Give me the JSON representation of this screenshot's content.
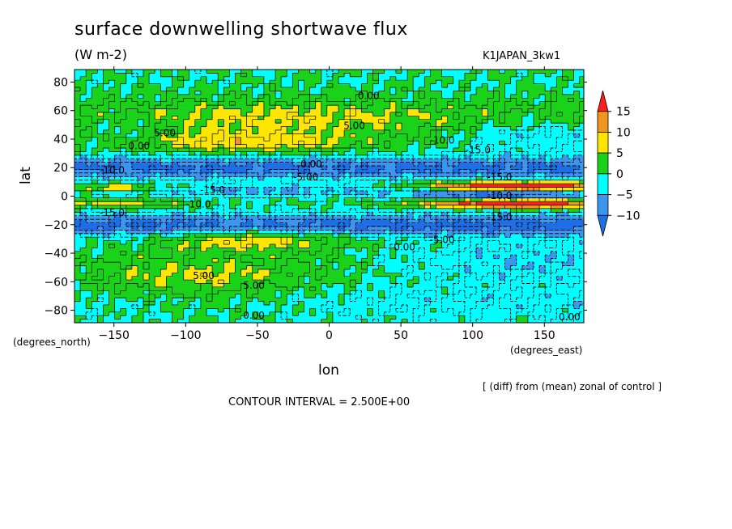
{
  "title": "surface downwelling shortwave flux",
  "units": "(W m-2)",
  "experiment": "K1JAPAN_3kw1",
  "note": "[ (diff) from (mean) zonal of control ]",
  "contour_interval": "CONTOUR INTERVAL = 2.500E+00",
  "colors": {
    "lt_-10": "#1e6fe6",
    "-10_-5": "#3c96f0",
    "-5_0": "#00ffff",
    "0_5": "#19d219",
    "5_10": "#ffe600",
    "10_15": "#f0961e",
    "gt_15": "#ff1e1e"
  },
  "chart_data": {
    "type": "heatmap",
    "xlabel": "lon",
    "ylabel": "lat",
    "x_units_label": "(degrees_east)",
    "y_units_label": "(degrees_north)",
    "xlim": [
      -177.5,
      177.5
    ],
    "ylim": [
      -88.75,
      88.75
    ],
    "x_ticks": [
      -150,
      -100,
      -50,
      0,
      50,
      100,
      150
    ],
    "y_ticks": [
      -80,
      -60,
      -40,
      -20,
      0,
      20,
      40,
      60,
      80
    ],
    "colorbar": {
      "levels": [
        -10,
        -5,
        0,
        5,
        10,
        15
      ],
      "labels": [
        "15",
        "10",
        "5",
        "0",
        "−5",
        "−10"
      ]
    },
    "contour_labels": [
      {
        "text": "0.00",
        "lon": 20,
        "lat": 68
      },
      {
        "text": "5.00",
        "lon": 10,
        "lat": 47
      },
      {
        "text": "5.00",
        "lon": -122,
        "lat": 42
      },
      {
        "text": "0.00",
        "lon": -140,
        "lat": 33
      },
      {
        "text": "0.00",
        "lon": -20,
        "lat": 20
      },
      {
        "text": "-5.00",
        "lon": -25,
        "lat": 11
      },
      {
        "text": "-10.0",
        "lon": -160,
        "lat": 16
      },
      {
        "text": "-15.0",
        "lon": -90,
        "lat": 2
      },
      {
        "text": "-10.0",
        "lon": -100,
        "lat": -8
      },
      {
        "text": "-15.0",
        "lon": -160,
        "lat": -14
      },
      {
        "text": "-10.0",
        "lon": 70,
        "lat": 37
      },
      {
        "text": "-15.0",
        "lon": 95,
        "lat": 30
      },
      {
        "text": "-15.0",
        "lon": 110,
        "lat": 11
      },
      {
        "text": "-10.0",
        "lon": 110,
        "lat": -2
      },
      {
        "text": "-15.0",
        "lon": 110,
        "lat": -17
      },
      {
        "text": "-5.00",
        "lon": 70,
        "lat": -33
      },
      {
        "text": "0.00",
        "lon": 45,
        "lat": -38
      },
      {
        "text": "5.00",
        "lon": -95,
        "lat": -58
      },
      {
        "text": "5.00",
        "lon": -60,
        "lat": -65
      },
      {
        "text": "0.00",
        "lon": -60,
        "lat": -86
      },
      {
        "text": "0.00",
        "lon": 160,
        "lat": -87
      }
    ]
  }
}
